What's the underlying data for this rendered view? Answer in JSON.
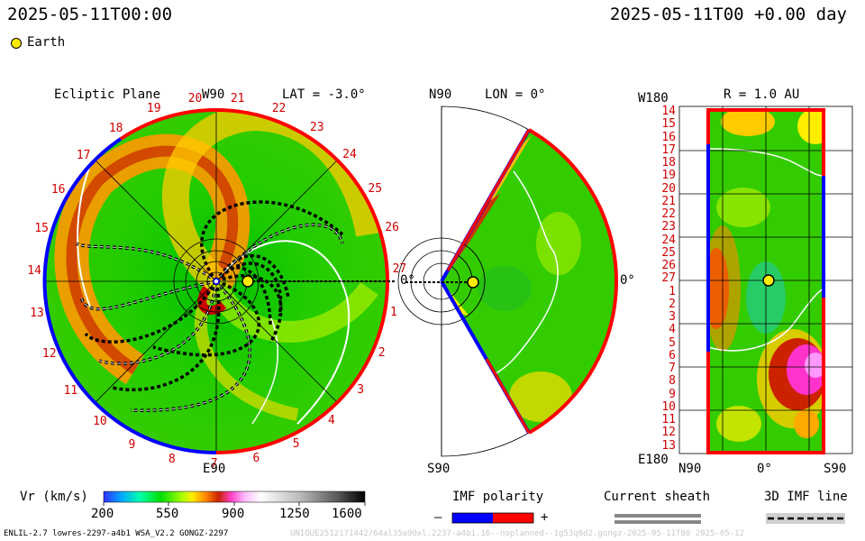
{
  "header": {
    "left_time": "2025-05-11T00:00",
    "right_time": "2025-05-11T00 +0.00 day",
    "legend_earth": "Earth"
  },
  "panels": {
    "ecliptic": {
      "title": "Ecliptic Plane",
      "top_label": "W90",
      "bottom_label": "E90",
      "lat_label": "LAT = -3.0°",
      "right_label": "0°",
      "sector_numbers": [
        "20",
        "21",
        "22",
        "23",
        "24",
        "25",
        "26",
        "27",
        "1",
        "2",
        "3",
        "4",
        "5",
        "6",
        "7",
        "8",
        "9",
        "10",
        "11",
        "12",
        "13",
        "14",
        "15",
        "16",
        "17",
        "18",
        "19"
      ]
    },
    "meridional": {
      "top_label": "N90",
      "bottom_label": "S90",
      "lon_label": "LON = 0°",
      "right_label": "0°"
    },
    "latlon": {
      "title": "R = 1.0 AU",
      "top_left_label": "W180",
      "bottom_left_label": "E180",
      "bottom_ticks": [
        "N90",
        "0°",
        "S90"
      ],
      "rows": [
        "14",
        "15",
        "16",
        "17",
        "18",
        "19",
        "20",
        "21",
        "22",
        "23",
        "24",
        "25",
        "26",
        "27",
        "1",
        "2",
        "3",
        "4",
        "5",
        "6",
        "7",
        "8",
        "9",
        "10",
        "11",
        "12",
        "13"
      ]
    }
  },
  "colorbar": {
    "label": "Vr (km/s)",
    "ticks": [
      "200",
      "550",
      "900",
      "1250",
      "1600"
    ],
    "range": [
      200,
      1600
    ],
    "stops": [
      "#0000ff",
      "#00bfff",
      "#00ff00",
      "#00c000",
      "#ffff00",
      "#ff8000",
      "#c00000",
      "#ff00ff",
      "#ffffff",
      "#c0c0c0",
      "#808080",
      "#000000"
    ]
  },
  "legends": {
    "imf_polarity": "IMF polarity",
    "minus": "–",
    "plus": "+",
    "current_sheath": "Current sheath",
    "imf_line": "3D IMF line"
  },
  "footer": {
    "left": "ENLIL-2.7 lowres-2297-a4b1 WSA_V2.2 GONGZ-2297",
    "right": "UNIQUE2512171442/64al35a90xl.2237-a4b1.16--noplanned--1g53q6d2.gongz-2025-05-11T00  2025-05-12"
  },
  "chart_data": {
    "type": "heatmap",
    "variable": "Vr (km/s)",
    "color_range": [
      200,
      1600
    ],
    "earth_position": {
      "r_au": 1.0,
      "lat_deg": -3.0,
      "lon_deg": 0
    }
  },
  "colors": {
    "positive_polarity": "#ff0000",
    "negative_polarity": "#0000ff",
    "sector_number_color": "#d00000"
  }
}
